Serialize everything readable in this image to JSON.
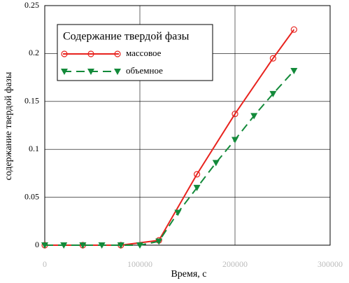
{
  "chart_data": {
    "type": "line",
    "x_label": "Время, с",
    "y_label": "содержание твердой фазы",
    "legend_title": "Содержание твердой фазы",
    "legend_position": "upper left",
    "grid": true,
    "xlim": [
      0,
      300000
    ],
    "xticks": [
      0,
      100000,
      200000,
      300000
    ],
    "ylim": [
      0,
      0.25
    ],
    "yticks": [
      0,
      0.05,
      0.1,
      0.15,
      0.2,
      0.25
    ],
    "series": [
      {
        "name": "массовое",
        "color": "#e8231e",
        "line_style": "solid",
        "marker": "circle",
        "x": [
          0,
          40000,
          80000,
          120000,
          160000,
          200000,
          240000,
          262000
        ],
        "values": [
          0,
          0,
          0,
          0.005,
          0.074,
          0.137,
          0.195,
          0.225
        ]
      },
      {
        "name": "объемное",
        "color": "#138a3a",
        "line_style": "dashed",
        "marker": "triangle",
        "x": [
          0,
          20000,
          40000,
          60000,
          80000,
          100000,
          120000,
          140000,
          160000,
          180000,
          200000,
          220000,
          240000,
          262000
        ],
        "values": [
          0,
          0,
          0,
          0,
          0,
          0,
          0.004,
          0.034,
          0.06,
          0.086,
          0.11,
          0.135,
          0.158,
          0.182
        ]
      }
    ]
  }
}
